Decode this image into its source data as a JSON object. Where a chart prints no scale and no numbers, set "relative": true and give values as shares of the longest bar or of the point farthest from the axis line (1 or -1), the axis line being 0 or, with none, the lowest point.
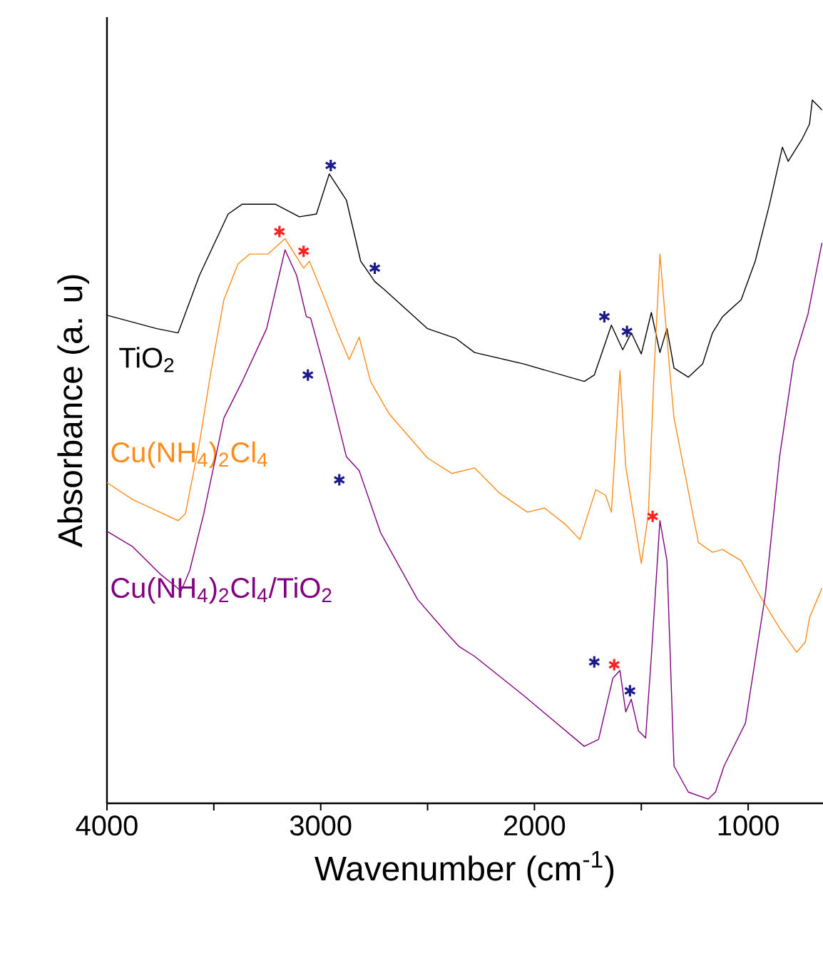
{
  "chart_data": {
    "type": "line",
    "relative": true,
    "xlabel": "Wavenumber (cm$^{-1}$)",
    "ylabel": "Absorbance (a. u)",
    "xlim": [
      4000,
      650
    ],
    "xticks": [
      4000,
      {
        "value": 3500,
        "label": null
      },
      3000,
      {
        "value": 2500,
        "label": null
      },
      2000,
      {
        "value": 1500,
        "label": null
      },
      1000
    ],
    "tick_labels": "x",
    "series": [
      {
        "name": "TiO$_{2}$",
        "color": "#000000",
        "x": [
          4000,
          3767,
          3667,
          3567,
          3433,
          3367,
          3213,
          3100,
          3020,
          2960,
          2880,
          2813,
          2747,
          2700,
          2500,
          2367,
          2280,
          2053,
          1767,
          1720,
          1640,
          1587,
          1547,
          1500,
          1453,
          1413,
          1380,
          1347,
          1280,
          1213,
          1167,
          1120,
          1033,
          967,
          900,
          840,
          813,
          747,
          713,
          700,
          655
        ],
        "values": [
          0.694,
          0.675,
          0.669,
          0.751,
          0.838,
          0.852,
          0.852,
          0.834,
          0.838,
          0.895,
          0.858,
          0.771,
          0.742,
          0.73,
          0.675,
          0.661,
          0.641,
          0.625,
          0.6,
          0.609,
          0.68,
          0.645,
          0.669,
          0.639,
          0.698,
          0.641,
          0.675,
          0.619,
          0.606,
          0.625,
          0.669,
          0.692,
          0.716,
          0.771,
          0.852,
          0.933,
          0.913,
          0.945,
          0.966,
          1.0,
          0.986
        ]
      },
      {
        "name": "Cu(NH$_{4}$)$_{2}$Cl$_{4}$",
        "color": "#ff8c1a",
        "x": [
          4000,
          3880,
          3767,
          3667,
          3633,
          3567,
          3513,
          3453,
          3387,
          3333,
          3247,
          3167,
          3113,
          3080,
          3053,
          2987,
          2920,
          2867,
          2820,
          2767,
          2680,
          2500,
          2387,
          2280,
          2167,
          2033,
          1953,
          1853,
          1787,
          1713,
          1667,
          1640,
          1600,
          1573,
          1500,
          1467,
          1440,
          1413,
          1367,
          1347,
          1233,
          1167,
          1120,
          1033,
          947,
          853,
          773,
          733,
          713,
          655
        ],
        "values": [
          0.456,
          0.432,
          0.416,
          0.402,
          0.412,
          0.513,
          0.615,
          0.716,
          0.767,
          0.781,
          0.781,
          0.803,
          0.777,
          0.761,
          0.771,
          0.722,
          0.669,
          0.631,
          0.663,
          0.6,
          0.554,
          0.491,
          0.469,
          0.477,
          0.442,
          0.414,
          0.42,
          0.396,
          0.375,
          0.446,
          0.438,
          0.414,
          0.615,
          0.479,
          0.341,
          0.412,
          0.615,
          0.781,
          0.615,
          0.548,
          0.371,
          0.357,
          0.361,
          0.345,
          0.296,
          0.249,
          0.215,
          0.229,
          0.264,
          0.306
        ]
      },
      {
        "name": "Cu(NH$_{4}$)$_{2}$Cl$_{4}$/TiO$_{2}$",
        "color": "#800080",
        "x": [
          4000,
          3880,
          3747,
          3653,
          3613,
          3547,
          3453,
          3367,
          3253,
          3167,
          3113,
          3067,
          3047,
          2967,
          2880,
          2820,
          2720,
          2547,
          2413,
          2353,
          2280,
          2053,
          1767,
          1700,
          1633,
          1600,
          1573,
          1547,
          1513,
          1480,
          1453,
          1413,
          1380,
          1347,
          1280,
          1187,
          1153,
          1113,
          1013,
          920,
          853,
          787,
          720,
          655
        ],
        "values": [
          0.387,
          0.365,
          0.325,
          0.302,
          0.331,
          0.412,
          0.548,
          0.6,
          0.675,
          0.787,
          0.751,
          0.692,
          0.69,
          0.6,
          0.493,
          0.473,
          0.385,
          0.29,
          0.243,
          0.223,
          0.209,
          0.154,
          0.081,
          0.091,
          0.178,
          0.189,
          0.13,
          0.148,
          0.103,
          0.093,
          0.209,
          0.402,
          0.345,
          0.053,
          0.016,
          0.006,
          0.016,
          0.053,
          0.114,
          0.296,
          0.493,
          0.629,
          0.696,
          0.797
        ]
      },
      {
        "type": "scatter",
        "marker": "cross",
        "color": "#1a1a8c",
        "x": [
          2953,
          2747,
          1673,
          1567,
          3060,
          2913,
          1720,
          1553
        ],
        "values": [
          0.907,
          0.761,
          0.692,
          0.671,
          0.609,
          0.46,
          0.201,
          0.16
        ]
      },
      {
        "type": "scatter",
        "marker": "cross",
        "color": "#ff2020",
        "x": [
          3193,
          3080,
          1447,
          1627
        ],
        "values": [
          0.813,
          0.785,
          0.408,
          0.197
        ]
      }
    ]
  }
}
